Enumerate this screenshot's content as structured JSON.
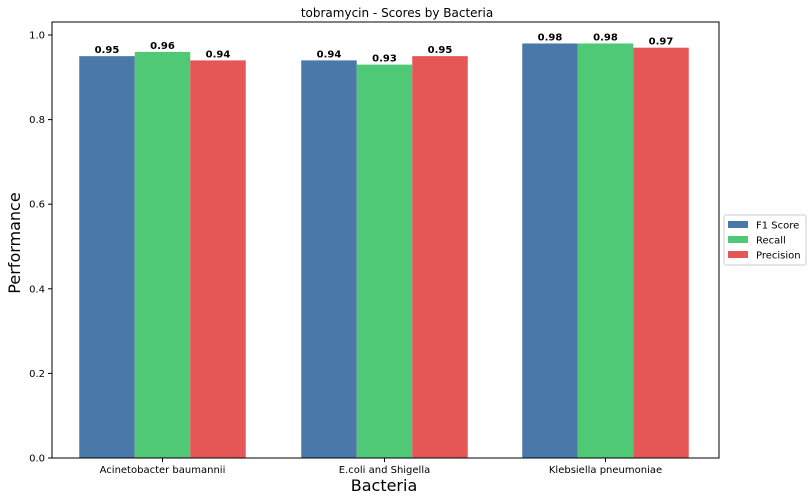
{
  "chart_data": {
    "type": "bar",
    "title": "tobramycin - Scores by Bacteria",
    "xlabel": "Bacteria",
    "ylabel": "Performance",
    "categories": [
      "Acinetobacter baumannii",
      "E.coli and Shigella",
      "Klebsiella pneumoniae"
    ],
    "series": [
      {
        "name": "F1 Score",
        "color": "#4a78a8",
        "values": [
          0.95,
          0.94,
          0.98
        ],
        "labels": [
          "0.95",
          "0.94",
          "0.98"
        ]
      },
      {
        "name": "Recall",
        "color": "#4fc976",
        "values": [
          0.96,
          0.93,
          0.98
        ],
        "labels": [
          "0.96",
          "0.93",
          "0.98"
        ]
      },
      {
        "name": "Precision",
        "color": "#e55757",
        "values": [
          0.94,
          0.95,
          0.97
        ],
        "labels": [
          "0.94",
          "0.95",
          "0.97"
        ]
      }
    ],
    "ylim": [
      0,
      1.0
    ],
    "yticks": [
      "0.0",
      "0.2",
      "0.4",
      "0.6",
      "0.8",
      "1.0"
    ],
    "grid": false,
    "legend_position": "right"
  }
}
